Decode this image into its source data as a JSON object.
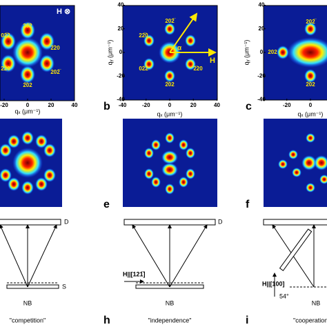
{
  "panel_a": {
    "marker": "H ⊗",
    "spots": [
      "20̅2",
      "02̅2",
      "2̅20",
      "22̅0",
      "202̅",
      "2̅02"
    ],
    "x_label": "qₓ (μm⁻¹)",
    "x_ticks": [
      -20,
      0,
      20,
      40
    ]
  },
  "panel_b": {
    "letter": "b",
    "spots": [
      "202̅",
      "22̅0",
      "02̅2",
      "2̅20",
      "2̅02"
    ],
    "field": "H",
    "angle": "α",
    "x_label": "qₓ (μm⁻¹)",
    "y_label": "qᵧ (μm⁻¹)",
    "x_ticks": [
      -40,
      -20,
      0,
      20,
      40
    ],
    "y_ticks": [
      40,
      20,
      0,
      -20,
      -40
    ]
  },
  "panel_c": {
    "letter": "c",
    "spots": [
      "202̅",
      "202",
      "2̅02"
    ],
    "x_label": "qₓ (μm⁻¹)",
    "y_label": "qᵧ (μm⁻¹)",
    "x_ticks": [
      -20,
      0
    ],
    "y_ticks": [
      40,
      20,
      0,
      -20,
      -40
    ]
  },
  "panel_e": {
    "letter": "e"
  },
  "panel_f": {
    "letter": "f"
  },
  "panel_g": {
    "detector": "D",
    "sample": "S",
    "beam": "NB",
    "caption": "\"competition\""
  },
  "panel_h": {
    "letter": "h",
    "detector": "D",
    "field": "H||[121̅]",
    "beam": "NB",
    "caption": "\"independence\""
  },
  "panel_i": {
    "letter": "i",
    "field": "H||[100]",
    "angle": "54°",
    "beam": "NB",
    "caption": "\"cooperation\""
  }
}
